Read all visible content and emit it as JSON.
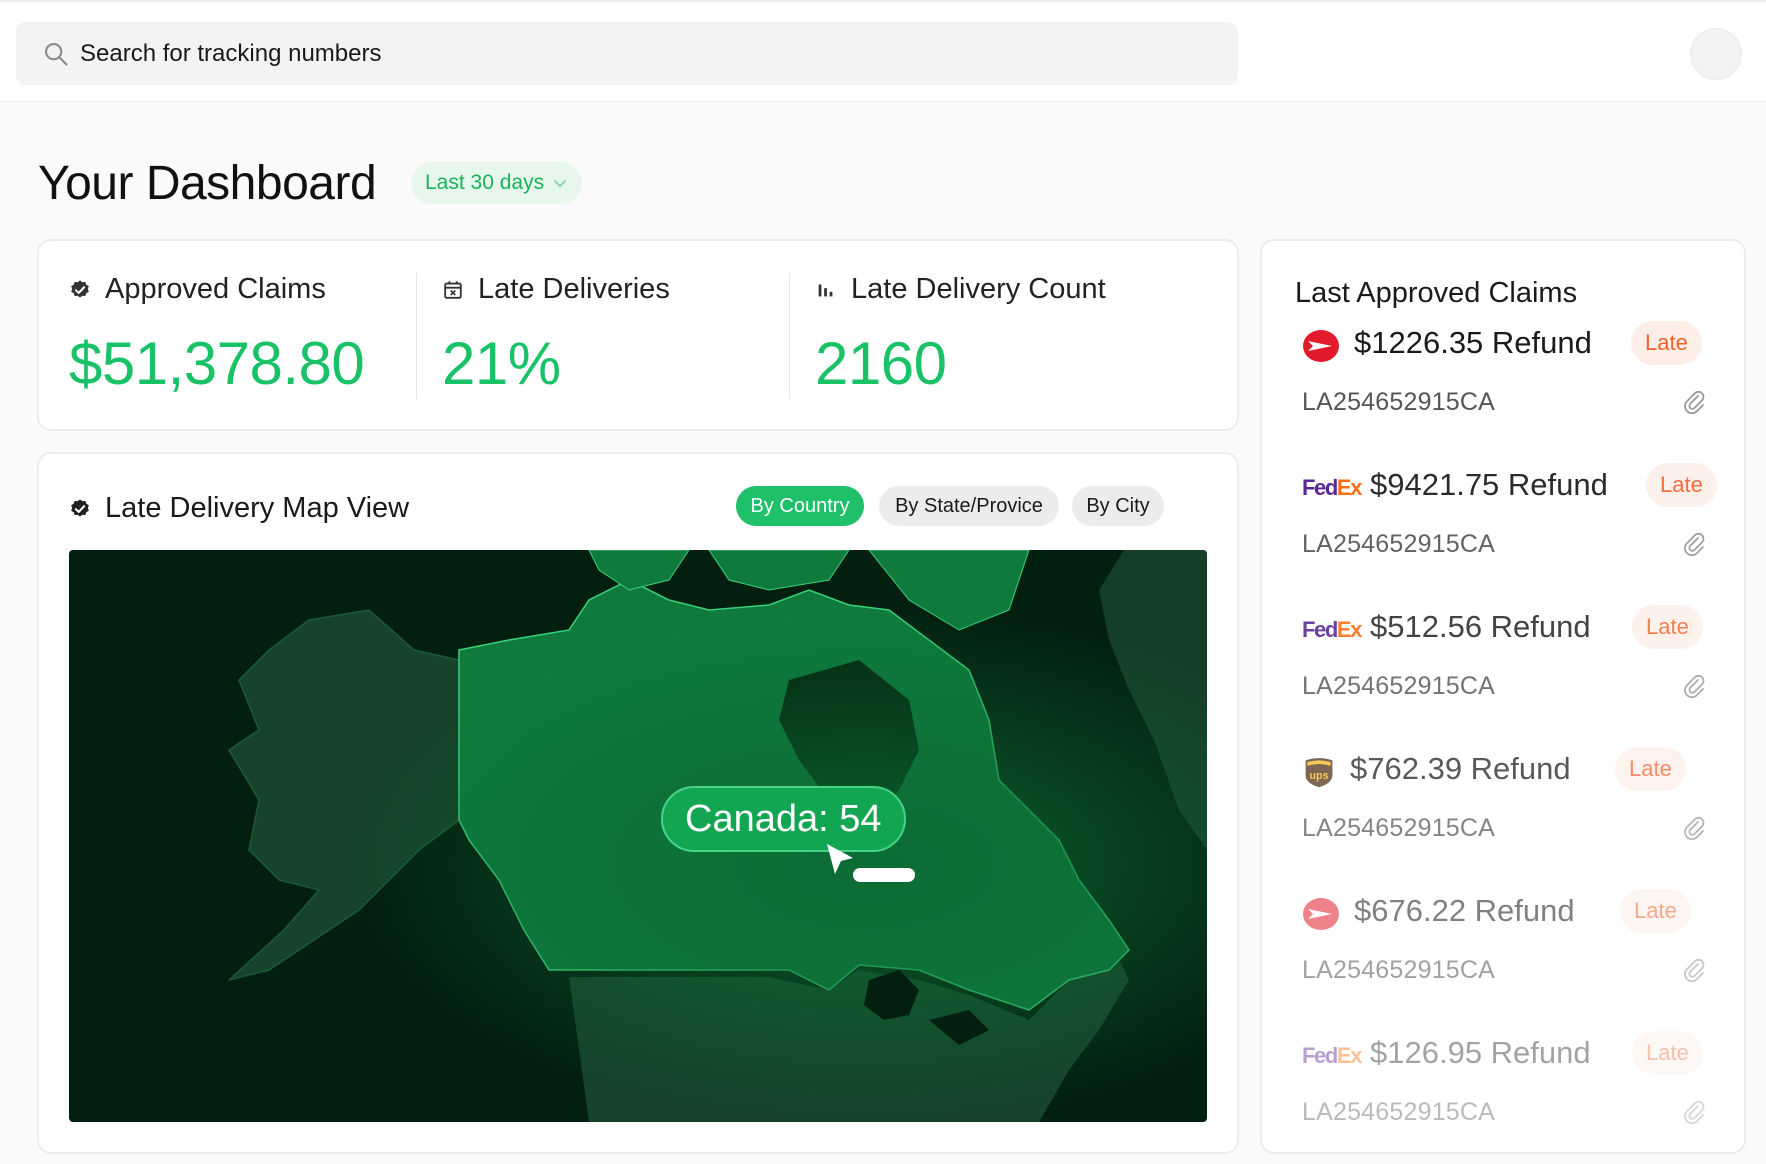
{
  "search": {
    "placeholder": "Search for tracking numbers"
  },
  "header": {
    "title": "Your Dashboard",
    "range_label": "Last 30 days"
  },
  "stats": [
    {
      "label": "Approved Claims",
      "value": "$51,378.80",
      "icon": "verified-badge-icon"
    },
    {
      "label": "Late Deliveries",
      "value": "21%",
      "icon": "calendar-x-icon"
    },
    {
      "label": "Late Delivery Count",
      "value": "2160",
      "icon": "bar-chart-icon"
    }
  ],
  "map": {
    "title": "Late Delivery Map View",
    "tabs": [
      {
        "label": "By Country",
        "active": true
      },
      {
        "label": "By State/Provice",
        "active": false
      },
      {
        "label": "By City",
        "active": false
      }
    ],
    "tooltip": "Canada: 54"
  },
  "claims": {
    "title": "Last Approved Claims",
    "items": [
      {
        "carrier": "canada-post",
        "amount": "$1226.35 Refund",
        "status": "Late",
        "tracking": "LA254652915CA"
      },
      {
        "carrier": "fedex",
        "amount": "$9421.75 Refund",
        "status": "Late",
        "tracking": "LA254652915CA"
      },
      {
        "carrier": "fedex",
        "amount": "$512.56 Refund",
        "status": "Late",
        "tracking": "LA254652915CA"
      },
      {
        "carrier": "ups",
        "amount": "$762.39 Refund",
        "status": "Late",
        "tracking": "LA254652915CA"
      },
      {
        "carrier": "canada-post",
        "amount": "$676.22 Refund",
        "status": "Late",
        "tracking": "LA254652915CA"
      },
      {
        "carrier": "fedex",
        "amount": "$126.95 Refund",
        "status": "Late",
        "tracking": "LA254652915CA"
      }
    ],
    "logo_text": {
      "fedex_fe": "Fed",
      "fedex_ex": "Ex",
      "ups": "ups"
    }
  },
  "colors": {
    "accent": "#19c266",
    "late_badge_bg": "#fdeee8",
    "late_badge_text": "#f0622d",
    "map_dark": "#031f0f"
  }
}
